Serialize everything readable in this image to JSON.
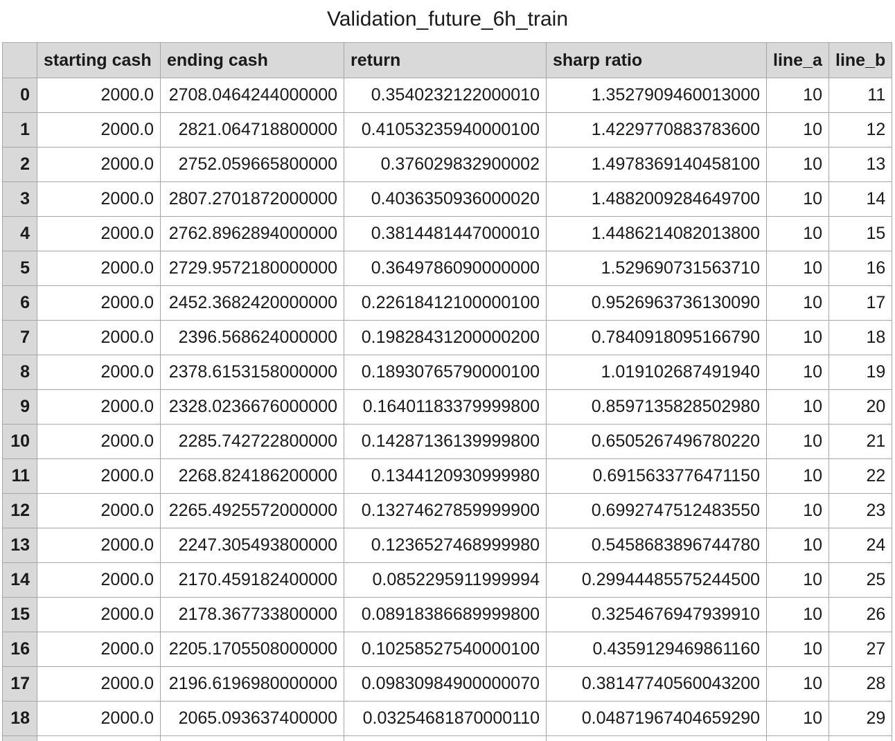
{
  "title": "Validation_future_6h_train",
  "table": {
    "columns": [
      "",
      "starting cash",
      "ending cash",
      "return",
      "sharp ratio",
      "line_a",
      "line_b"
    ],
    "rows": [
      [
        "0",
        "2000.0",
        "2708.0464244000000",
        "0.3540232122000010",
        "1.3527909460013000",
        "10",
        "11"
      ],
      [
        "1",
        "2000.0",
        "2821.064718800000",
        "0.41053235940000100",
        "1.4229770883783600",
        "10",
        "12"
      ],
      [
        "2",
        "2000.0",
        "2752.059665800000",
        "0.376029832900002",
        "1.4978369140458100",
        "10",
        "13"
      ],
      [
        "3",
        "2000.0",
        "2807.2701872000000",
        "0.4036350936000020",
        "1.4882009284649700",
        "10",
        "14"
      ],
      [
        "4",
        "2000.0",
        "2762.8962894000000",
        "0.3814481447000010",
        "1.4486214082013800",
        "10",
        "15"
      ],
      [
        "5",
        "2000.0",
        "2729.9572180000000",
        "0.3649786090000000",
        "1.529690731563710",
        "10",
        "16"
      ],
      [
        "6",
        "2000.0",
        "2452.3682420000000",
        "0.22618412100000100",
        "0.9526963736130090",
        "10",
        "17"
      ],
      [
        "7",
        "2000.0",
        "2396.568624000000",
        "0.19828431200000200",
        "0.7840918095166790",
        "10",
        "18"
      ],
      [
        "8",
        "2000.0",
        "2378.6153158000000",
        "0.18930765790000100",
        "1.019102687491940",
        "10",
        "19"
      ],
      [
        "9",
        "2000.0",
        "2328.0236676000000",
        "0.16401183379999800",
        "0.8597135828502980",
        "10",
        "20"
      ],
      [
        "10",
        "2000.0",
        "2285.742722800000",
        "0.14287136139999800",
        "0.6505267496780220",
        "10",
        "21"
      ],
      [
        "11",
        "2000.0",
        "2268.824186200000",
        "0.1344120930999980",
        "0.6915633776471150",
        "10",
        "22"
      ],
      [
        "12",
        "2000.0",
        "2265.4925572000000",
        "0.13274627859999900",
        "0.6992747512483550",
        "10",
        "23"
      ],
      [
        "13",
        "2000.0",
        "2247.305493800000",
        "0.1236527468999980",
        "0.5458683896744780",
        "10",
        "24"
      ],
      [
        "14",
        "2000.0",
        "2170.459182400000",
        "0.0852295911999994",
        "0.29944485575244500",
        "10",
        "25"
      ],
      [
        "15",
        "2000.0",
        "2178.367733800000",
        "0.08918386689999800",
        "0.3254676947939910",
        "10",
        "26"
      ],
      [
        "16",
        "2000.0",
        "2205.1705508000000",
        "0.10258527540000100",
        "0.4359129469861160",
        "10",
        "27"
      ],
      [
        "17",
        "2000.0",
        "2196.6196980000000",
        "0.09830984900000070",
        "0.38147740560043200",
        "10",
        "28"
      ],
      [
        "18",
        "2000.0",
        "2065.093637400000",
        "0.03254681870000110",
        "0.04871967404659290",
        "10",
        "29"
      ]
    ]
  }
}
